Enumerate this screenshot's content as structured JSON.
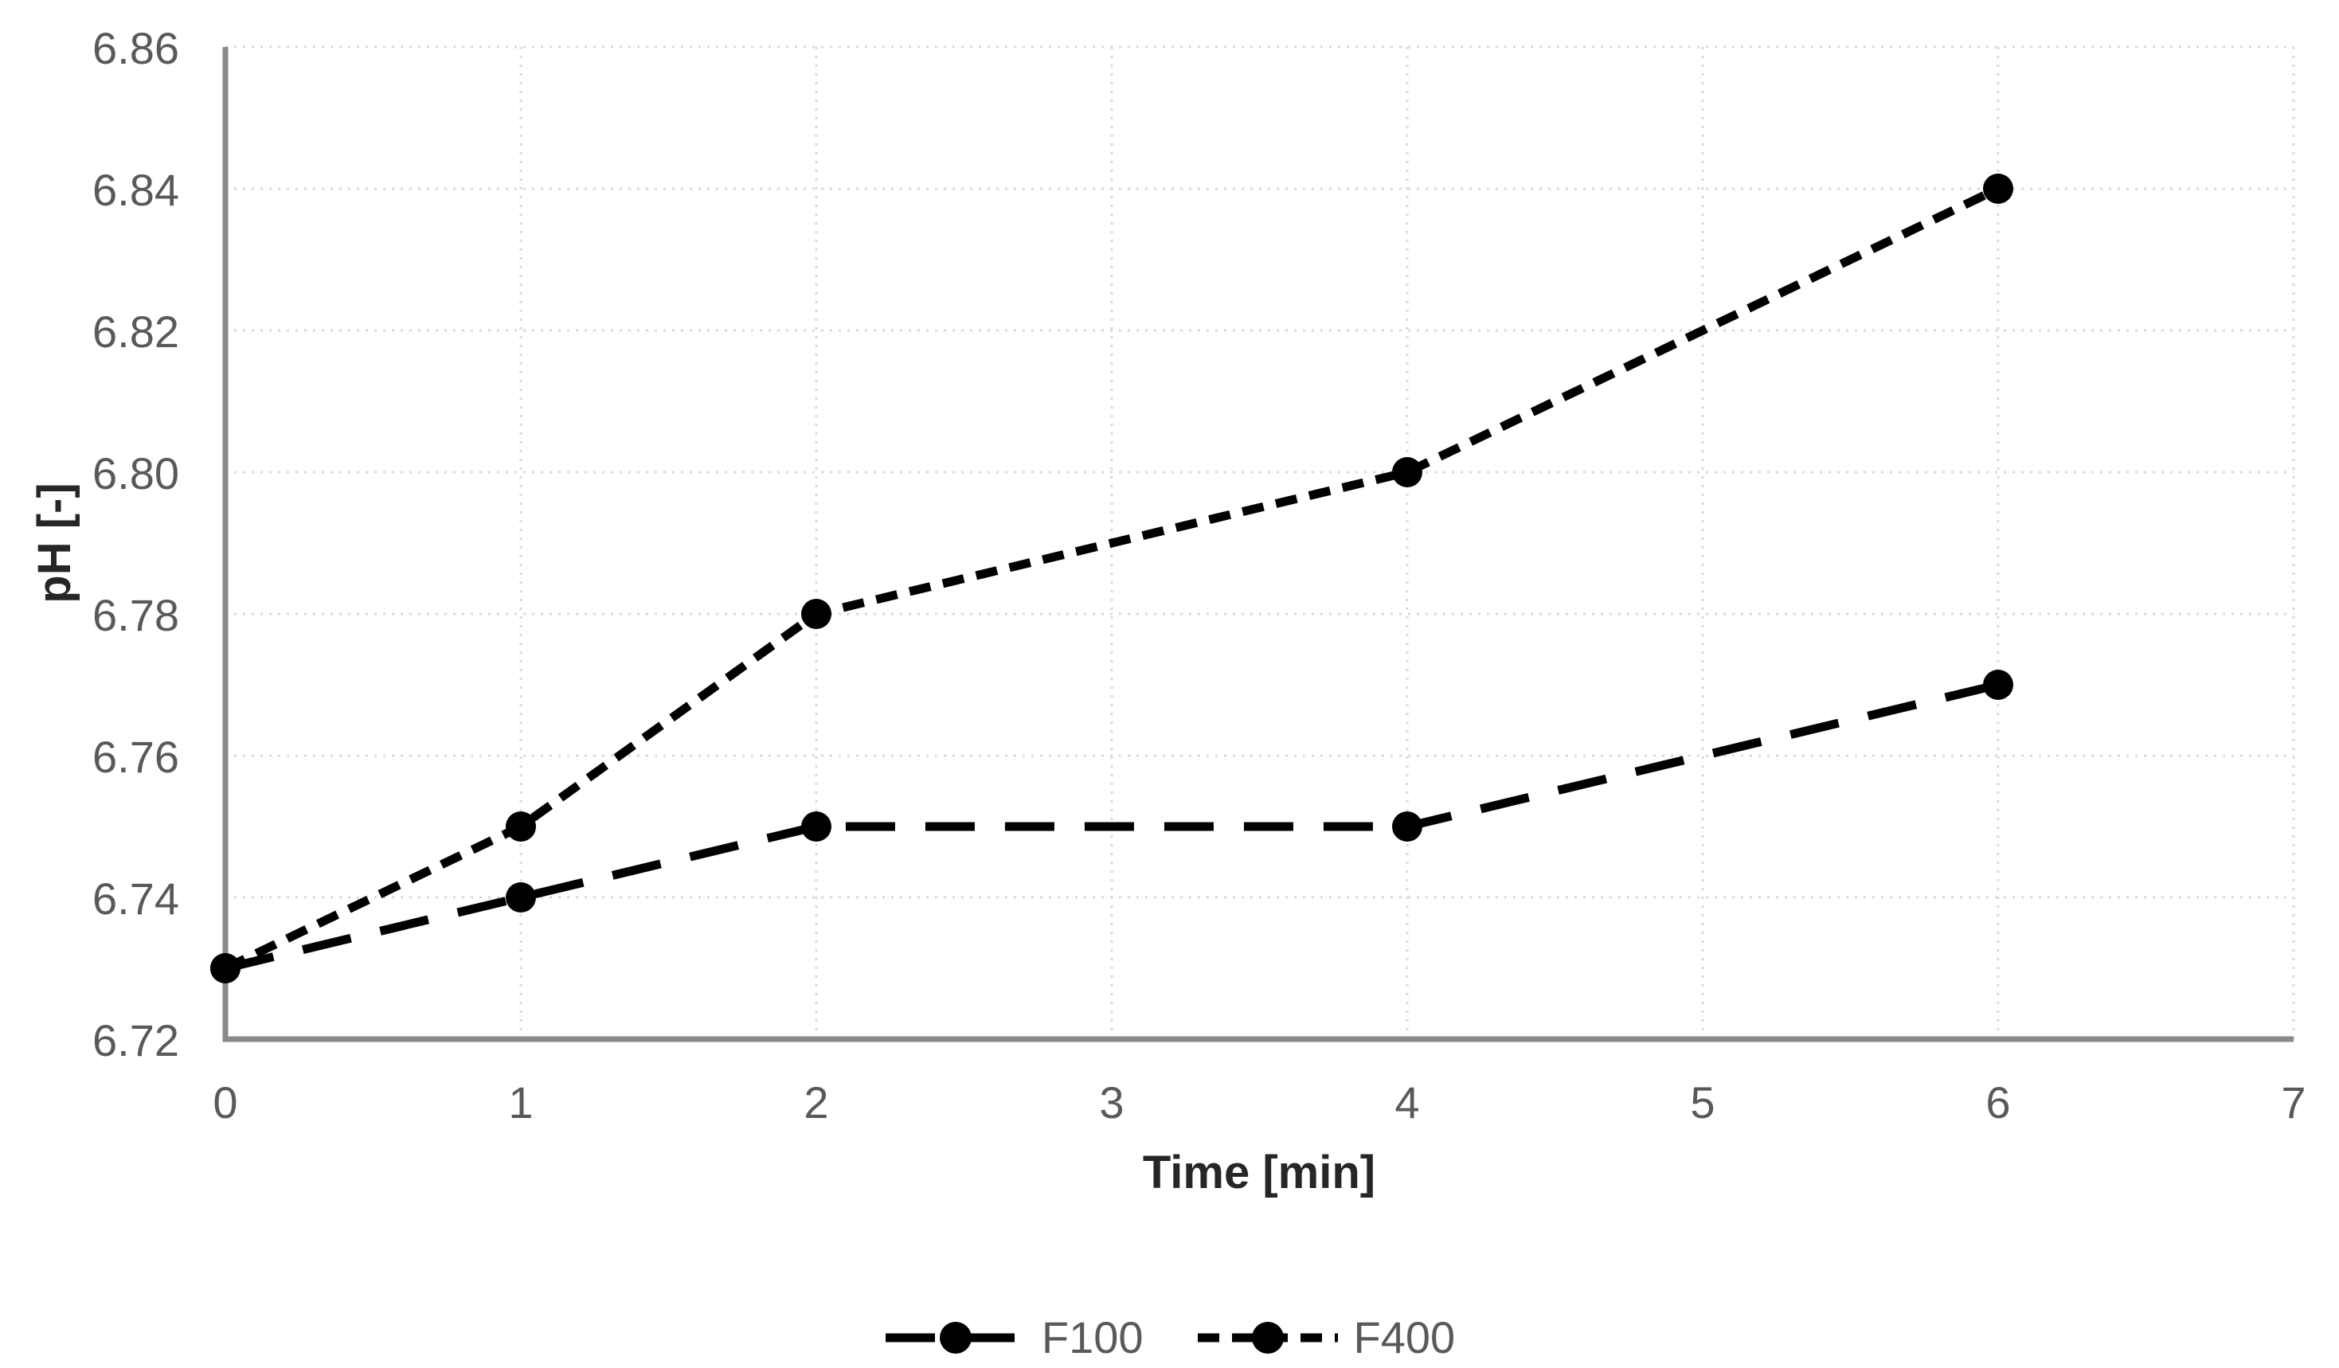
{
  "chart_data": {
    "type": "line",
    "title": "",
    "xlabel": "Time [min]",
    "ylabel": "pH [-]",
    "x": [
      0,
      1,
      2,
      4,
      6
    ],
    "series": [
      {
        "name": "F100",
        "values": [
          6.73,
          6.74,
          6.75,
          6.75,
          6.77
        ],
        "color": "#000000",
        "marker": "circle",
        "dash": "long-dash"
      },
      {
        "name": "F400",
        "values": [
          6.73,
          6.75,
          6.78,
          6.8,
          6.84
        ],
        "color": "#000000",
        "marker": "circle",
        "dash": "short-dash"
      }
    ],
    "xlim": [
      0,
      7
    ],
    "ylim": [
      6.72,
      6.86
    ],
    "x_ticks": [
      0,
      1,
      2,
      3,
      4,
      5,
      6,
      7
    ],
    "y_ticks": [
      "6.72",
      "6.74",
      "6.76",
      "6.78",
      "6.80",
      "6.82",
      "6.84",
      "6.86"
    ],
    "grid": true,
    "gridline_style": "dotted",
    "legend_position": "bottom-center",
    "colors": {
      "series": "#000000",
      "gridline": "#d9d9d9",
      "axis_line": "#8a8a8a",
      "tick_label": "#595959",
      "axis_title": "#262626",
      "legend_label": "#595959",
      "background": "#ffffff"
    }
  }
}
